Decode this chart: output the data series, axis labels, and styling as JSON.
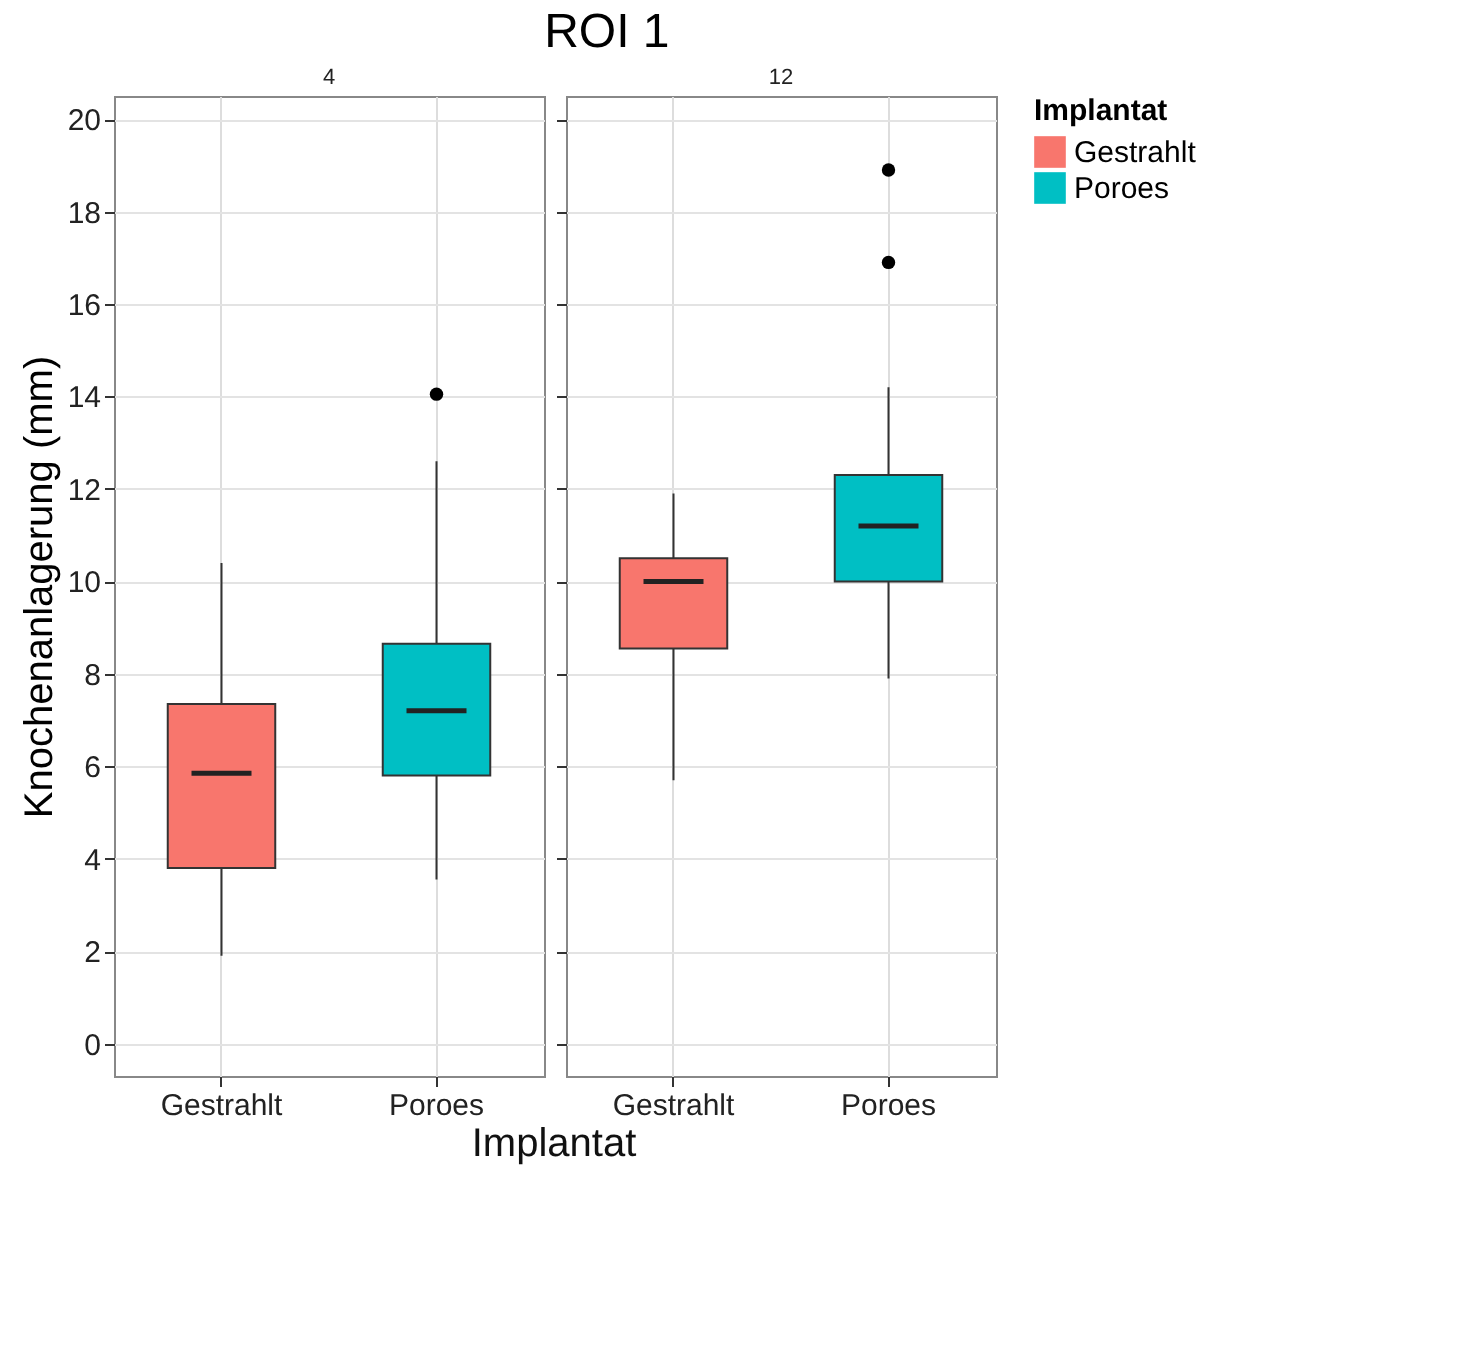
{
  "chart_data": [
    {
      "type": "box",
      "subtitle": "4",
      "legend": "right",
      "xlabel": "Implantat",
      "ylabel": "Knochenanlagerung (mm)",
      "grid": true,
      "categories": [
        "Gestrahlt",
        "Poroes"
      ],
      "series": [
        {
          "name": "Gestrahlt",
          "color": "#f8766d",
          "boxes": [
            {
              "low": 1.9,
              "q1": 3.8,
              "median": 5.85,
              "q3": 7.35,
              "high": 10.4
            },
            null
          ]
        },
        {
          "name": "Poroes",
          "color": "#00bfc4",
          "boxes": [
            null,
            {
              "low": 3.55,
              "q1": 5.8,
              "median": 7.2,
              "q3": 8.65,
              "high": 12.6,
              "outliers": [
                14.05
              ]
            }
          ]
        }
      ],
      "ylim": [
        -0.7,
        20.5
      ],
      "yticks": [
        0,
        2,
        4,
        6,
        8,
        10,
        12,
        14,
        16,
        18,
        20
      ]
    },
    {
      "type": "box",
      "title": "ROI 1",
      "subtitle": "12",
      "legend_title": "Implantat",
      "legend": "right",
      "grid": true,
      "tick_labels": "x",
      "categories": [
        "Gestrahlt",
        "Poroes"
      ],
      "series": [
        {
          "name": "Gestrahlt",
          "color": "#f8766d",
          "boxes": [
            {
              "low": 5.7,
              "q1": 8.55,
              "median": 10.0,
              "q3": 10.5,
              "high": 11.9
            },
            null
          ]
        },
        {
          "name": "Poroes",
          "color": "#00bfc4",
          "boxes": [
            null,
            {
              "low": 7.9,
              "q1": 10.0,
              "median": 11.2,
              "q3": 12.3,
              "high": 14.2,
              "outliers": [
                16.9,
                18.9
              ]
            }
          ]
        }
      ],
      "ylim": [
        -0.7,
        20.5
      ],
      "yticks": [
        0,
        2,
        4,
        6,
        8,
        10,
        12,
        14,
        16,
        18,
        20
      ]
    }
  ]
}
